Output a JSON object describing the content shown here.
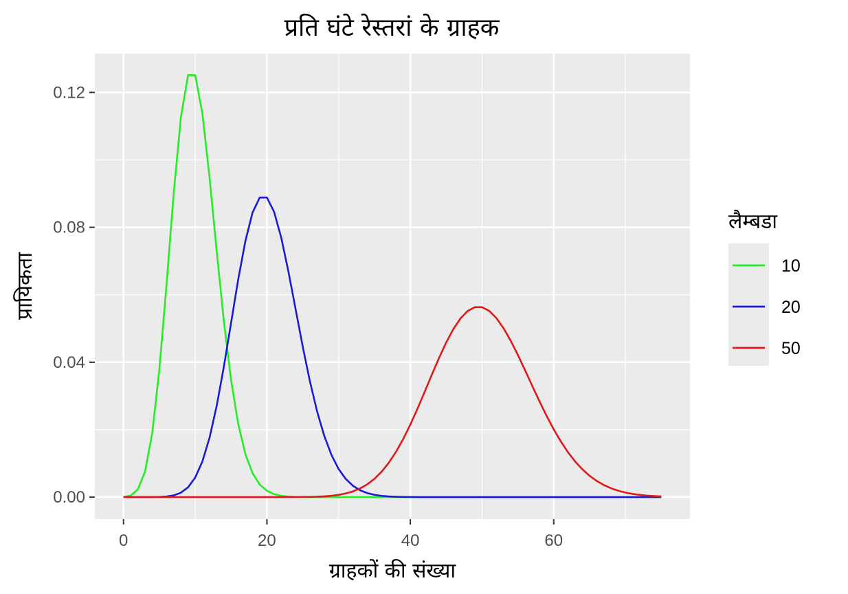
{
  "chart_data": {
    "type": "line",
    "title": "प्रति घंटे रेस्तरां के ग्राहक",
    "xlabel": "ग्राहकों की संख्या",
    "ylabel": "प्रायिकता",
    "xlim": [
      -4,
      79
    ],
    "ylim": [
      -0.0065,
      0.1315
    ],
    "x_ticks": [
      0,
      20,
      40,
      60
    ],
    "x_tick_labels": [
      "0",
      "20",
      "40",
      "60"
    ],
    "x_minor_ticks": [
      10,
      30,
      50,
      70
    ],
    "y_ticks": [
      0.0,
      0.04,
      0.08,
      0.12
    ],
    "y_tick_labels": [
      "0.00",
      "0.04",
      "0.08",
      "0.12"
    ],
    "y_minor_ticks": [
      0.02,
      0.06,
      0.1
    ],
    "grid": true,
    "background": "#ebebeb",
    "legend": {
      "title": "लैम्बडा",
      "position": "right"
    },
    "x_range": [
      0,
      75
    ],
    "series": [
      {
        "name": "10",
        "lambda": 10,
        "color": "#22ee22"
      },
      {
        "name": "20",
        "lambda": 20,
        "color": "#1a1ad6"
      },
      {
        "name": "50",
        "lambda": 50,
        "color": "#e01818"
      }
    ]
  }
}
